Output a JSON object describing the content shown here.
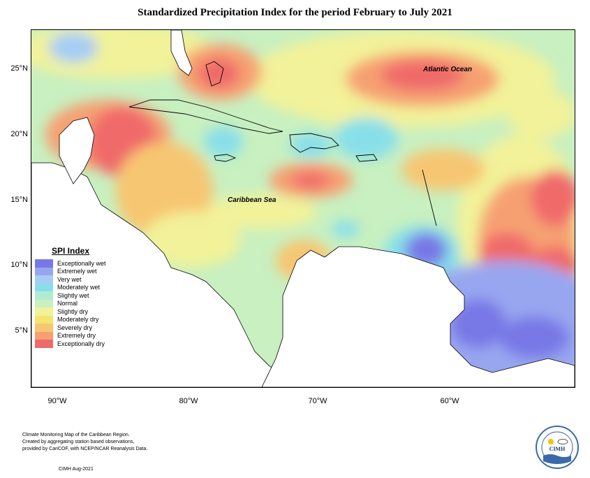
{
  "title": "Standardized Precipitation Index for the period February to July 2021",
  "lat_labels": [
    "25°N",
    "20°N",
    "15°N",
    "10°N",
    "5°N"
  ],
  "lon_labels": [
    "90°W",
    "80°W",
    "70°W",
    "60°W"
  ],
  "ocean_labels": {
    "atlantic": "Atlantic Ocean",
    "caribbean": "Caribbean Sea"
  },
  "legend": {
    "title": "SPI Index",
    "items": [
      {
        "label": "Exceptionally wet",
        "color": "#7878e6"
      },
      {
        "label": "Extremely wet",
        "color": "#98a6f0"
      },
      {
        "label": "Very wet",
        "color": "#a6cdf5"
      },
      {
        "label": "Moderately wet",
        "color": "#88dfea"
      },
      {
        "label": "Slightly wet",
        "color": "#b0ecd2"
      },
      {
        "label": "Normal",
        "color": "#c8f0c0"
      },
      {
        "label": "Slightly dry",
        "color": "#f2f29a"
      },
      {
        "label": "Moderately dry",
        "color": "#f5e46e"
      },
      {
        "label": "Severely dry",
        "color": "#f7c672"
      },
      {
        "label": "Extremely dry",
        "color": "#f6a072"
      },
      {
        "label": "Exceptionally dry",
        "color": "#f06a6a"
      }
    ]
  },
  "footer": {
    "line1": "Climate Monitoring Map of the Caribbean Region.",
    "line2": "Created by aggregating station based observations,",
    "line3": "provided by CariCOF, with NCEP/NCAR Reanalysis Data.",
    "credit": "CIMH Aug-2021"
  },
  "logo": {
    "text": "CIMH"
  }
}
